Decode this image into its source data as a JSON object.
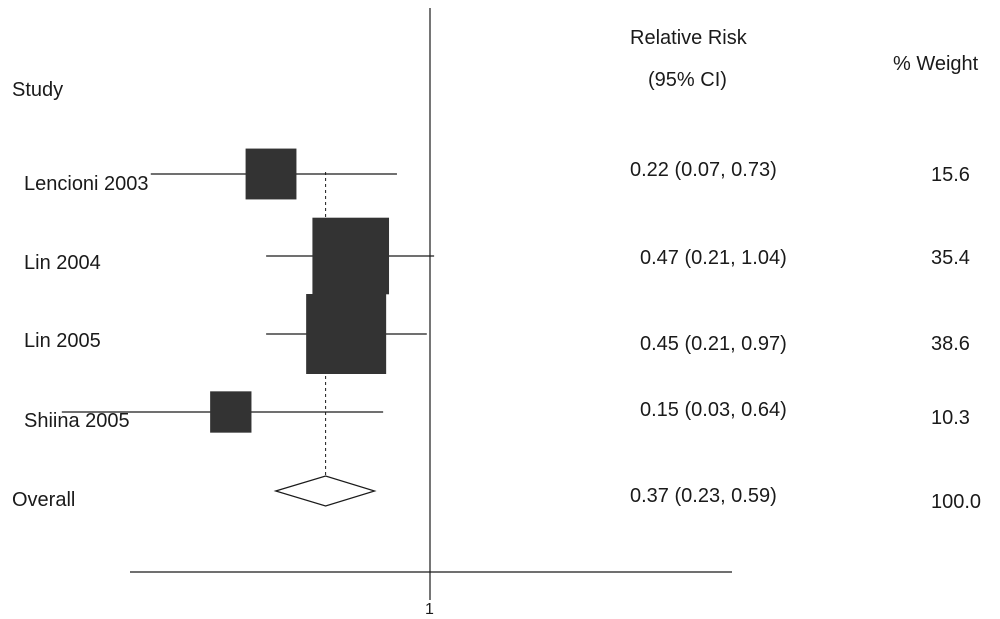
{
  "chart_data": {
    "type": "forest",
    "xlabel": "",
    "x_ticks": [
      "1"
    ],
    "headers": {
      "study": "Study",
      "rr_line1": "Relative Risk",
      "rr_line2": "(95% CI)",
      "weight": "% Weight"
    },
    "studies": [
      {
        "label": "Lencioni 2003",
        "rr": 0.22,
        "lo": 0.07,
        "hi": 0.73,
        "ci_text": "0.22 (0.07, 0.73)",
        "weight": 15.6,
        "weight_text": "15.6"
      },
      {
        "label": "Lin 2004",
        "rr": 0.47,
        "lo": 0.21,
        "hi": 1.04,
        "ci_text": "0.47 (0.21, 1.04)",
        "weight": 35.4,
        "weight_text": "35.4"
      },
      {
        "label": "Lin 2005",
        "rr": 0.45,
        "lo": 0.21,
        "hi": 0.97,
        "ci_text": "0.45 (0.21, 0.97)",
        "weight": 38.6,
        "weight_text": "38.6"
      },
      {
        "label": "Shiina 2005",
        "rr": 0.15,
        "lo": 0.03,
        "hi": 0.64,
        "ci_text": "0.15 (0.03, 0.64)",
        "weight": 10.3,
        "weight_text": "10.3"
      }
    ],
    "overall": {
      "label": "Overall",
      "rr": 0.37,
      "lo": 0.23,
      "hi": 0.59,
      "ci_text": "0.37 (0.23, 0.59)",
      "weight_text": "100.0"
    },
    "colors": {
      "box": "#333333",
      "line": "#1a1a1a",
      "diamond_fill": "#ffffff"
    }
  }
}
